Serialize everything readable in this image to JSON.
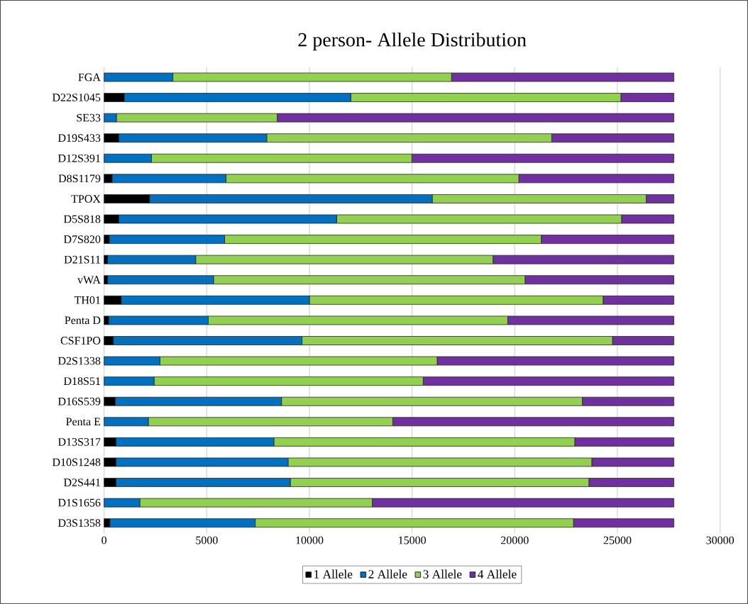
{
  "chart_data": {
    "type": "bar",
    "orientation": "horizontal",
    "stacked": true,
    "title": "2 person- Allele Distribution",
    "categories": [
      "FGA",
      "D22S1045",
      "SE33",
      "D19S433",
      "D12S391",
      "D8S1179",
      "TPOX",
      "D5S818",
      "D7S820",
      "D21S11",
      "vWA",
      "TH01",
      "Penta D",
      "CSF1PO",
      "D2S1338",
      "D18S51",
      "D16S539",
      "Penta E",
      "D13S317",
      "D10S1248",
      "D2S441",
      "D1S1656",
      "D3S1358"
    ],
    "series": [
      {
        "name": "1 Allele",
        "color": "#000000",
        "values": [
          0,
          980,
          0,
          715,
          0,
          390,
          2215,
          715,
          250,
          170,
          170,
          830,
          220,
          450,
          0,
          0,
          540,
          0,
          580,
          580,
          580,
          0,
          280
        ]
      },
      {
        "name": "2 Allele",
        "color": "#0070c0",
        "values": [
          3350,
          11040,
          600,
          7205,
          2310,
          5550,
          13765,
          10615,
          5620,
          4290,
          5160,
          9170,
          4855,
          9190,
          2720,
          2435,
          8100,
          2155,
          7690,
          8380,
          8490,
          1740,
          7080
        ]
      },
      {
        "name": "3 Allele",
        "color": "#92d050",
        "values": [
          13570,
          13150,
          7830,
          13880,
          12680,
          14260,
          10420,
          13870,
          15420,
          14480,
          15170,
          14300,
          14585,
          15120,
          13500,
          13105,
          14650,
          11905,
          14650,
          14790,
          14540,
          11320,
          15500
        ]
      },
      {
        "name": "4 Allele",
        "color": "#7030a0",
        "values": [
          10830,
          2580,
          19320,
          5950,
          12760,
          7550,
          1350,
          2550,
          6460,
          8810,
          7250,
          3450,
          8090,
          2990,
          11530,
          12210,
          4460,
          13690,
          4830,
          4000,
          4140,
          14690,
          4890
        ]
      }
    ],
    "xlim": [
      0,
      30000
    ],
    "xticks": [
      0,
      5000,
      10000,
      15000,
      20000,
      25000,
      30000
    ],
    "grid": "x",
    "legend": "bottom"
  }
}
